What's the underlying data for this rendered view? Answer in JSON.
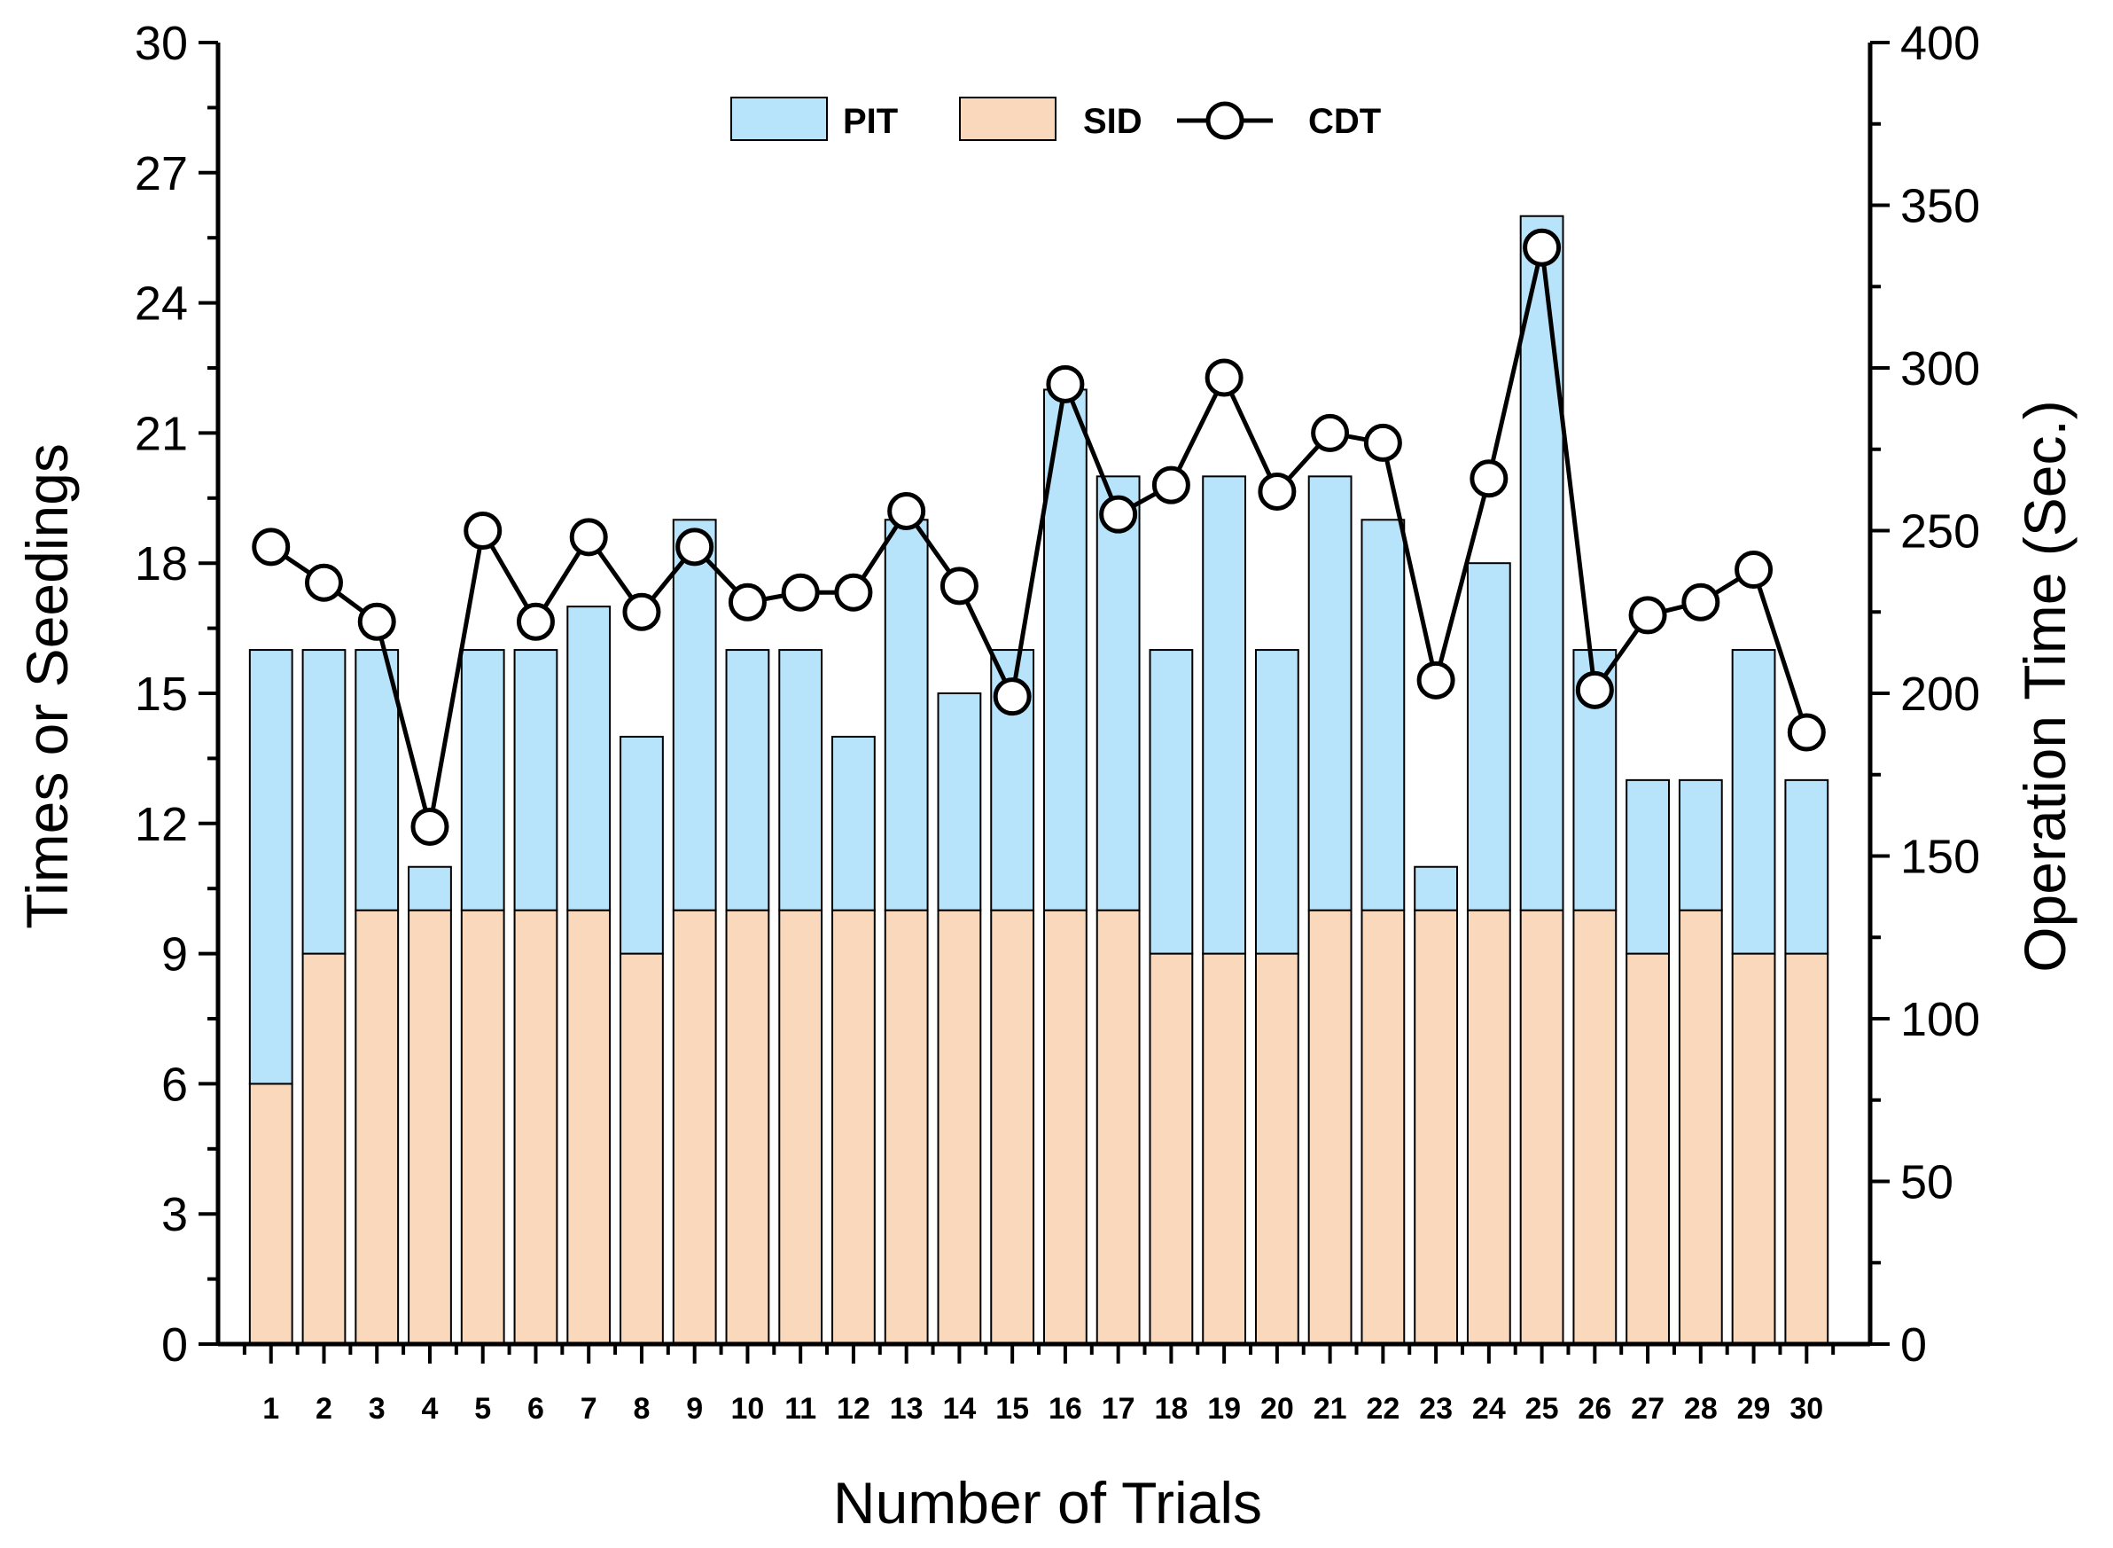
{
  "chart_data": {
    "type": "bar",
    "stacked": true,
    "categories": [
      "1",
      "2",
      "3",
      "4",
      "5",
      "6",
      "7",
      "8",
      "9",
      "10",
      "11",
      "12",
      "13",
      "14",
      "15",
      "16",
      "17",
      "18",
      "19",
      "20",
      "21",
      "22",
      "23",
      "24",
      "25",
      "26",
      "27",
      "28",
      "29",
      "30"
    ],
    "series": [
      {
        "name": "PIT",
        "axis": "left",
        "color": "#b8e4fb",
        "values": [
          10,
          7,
          6,
          1,
          6,
          6,
          7,
          5,
          9,
          6,
          6,
          4,
          9,
          5,
          6,
          12,
          10,
          7,
          11,
          7,
          10,
          9,
          1,
          8,
          16,
          6,
          4,
          3,
          7,
          4
        ]
      },
      {
        "name": "SID",
        "axis": "left",
        "color": "#f9d8bc",
        "values": [
          6,
          9,
          10,
          10,
          10,
          10,
          10,
          9,
          10,
          10,
          10,
          10,
          10,
          10,
          10,
          10,
          10,
          9,
          9,
          9,
          10,
          10,
          10,
          10,
          10,
          10,
          9,
          10,
          9,
          9
        ]
      },
      {
        "name": "CDT",
        "axis": "right",
        "type": "line",
        "marker": "open-circle",
        "color": "#000000",
        "values": [
          245,
          234,
          222,
          159,
          250,
          222,
          248,
          225,
          245,
          228,
          231,
          231,
          256,
          233,
          199,
          295,
          255,
          264,
          297,
          262,
          280,
          277,
          204,
          266,
          337,
          201,
          224,
          228,
          238,
          188
        ]
      }
    ],
    "xlabel": "Number of Trials",
    "ylabel": "Times or Seedings",
    "y2label": "Operation Time (Sec.)",
    "ylim": [
      0,
      30
    ],
    "y2lim": [
      0,
      400
    ],
    "yticks": [
      "0",
      "3",
      "6",
      "9",
      "12",
      "15",
      "18",
      "21",
      "24",
      "27",
      "30"
    ],
    "y2ticks": [
      "0",
      "50",
      "100",
      "150",
      "200",
      "250",
      "300",
      "350",
      "400"
    ],
    "legend": {
      "position": "top-center",
      "entries": [
        "PIT",
        "SID",
        "CDT"
      ]
    },
    "grid": false
  }
}
